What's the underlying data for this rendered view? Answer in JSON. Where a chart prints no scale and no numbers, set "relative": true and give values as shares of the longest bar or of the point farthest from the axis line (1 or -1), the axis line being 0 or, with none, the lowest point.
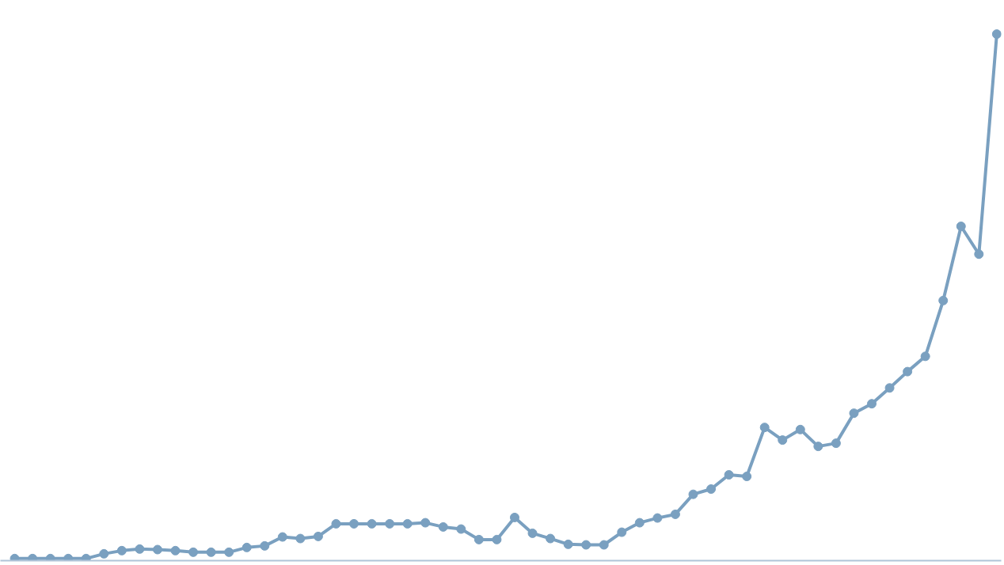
{
  "chart_data": {
    "type": "line",
    "relative": true,
    "marker": "circle",
    "line_style": "solid",
    "categories": [
      null,
      null,
      null,
      null,
      null,
      null,
      null,
      null,
      null,
      null,
      null,
      null,
      null,
      null,
      null,
      null,
      null,
      null,
      null,
      null,
      null,
      null,
      null,
      null,
      null,
      null,
      null,
      null,
      null,
      null,
      null,
      null,
      null,
      null,
      null,
      null,
      null,
      null,
      null,
      null,
      null,
      null,
      null,
      null,
      null,
      null,
      null,
      null,
      null,
      null,
      null,
      null,
      null,
      null,
      null,
      null
    ],
    "series": [
      {
        "color": "#7aa0c0",
        "values": [
          0.004,
          0.004,
          0.004,
          0.004,
          0.004,
          0.013,
          0.019,
          0.022,
          0.021,
          0.019,
          0.016,
          0.016,
          0.016,
          0.025,
          0.028,
          0.045,
          0.042,
          0.046,
          0.07,
          0.07,
          0.07,
          0.07,
          0.07,
          0.072,
          0.064,
          0.06,
          0.04,
          0.04,
          0.082,
          0.052,
          0.042,
          0.031,
          0.03,
          0.03,
          0.054,
          0.072,
          0.081,
          0.088,
          0.126,
          0.136,
          0.163,
          0.16,
          0.253,
          0.229,
          0.249,
          0.217,
          0.223,
          0.28,
          0.298,
          0.328,
          0.359,
          0.388,
          0.494,
          0.635,
          0.582,
          1.0
        ]
      }
    ]
  }
}
